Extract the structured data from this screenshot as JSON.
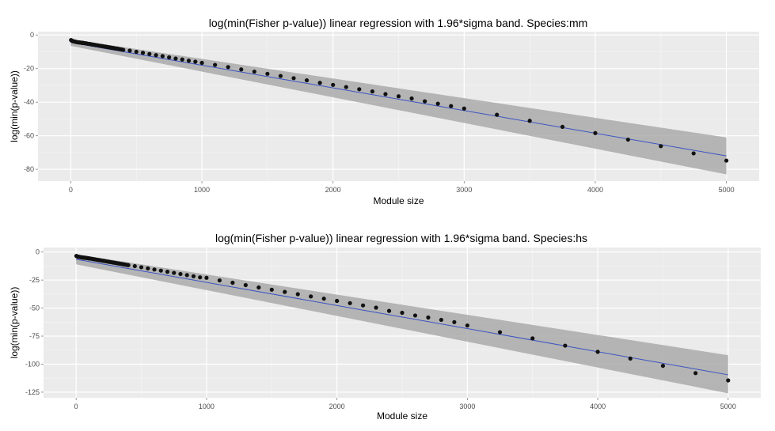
{
  "chart_data": [
    {
      "type": "scatter",
      "title": "log(min(Fisher p-value)) linear regression with 1.96*sigma band. Species:mm",
      "xlabel": "Module size",
      "ylabel": "log(min(p-value))",
      "xlim": [
        -250,
        5250
      ],
      "ylim": [
        -87,
        2
      ],
      "xticks": [
        0,
        1000,
        2000,
        3000,
        4000,
        5000
      ],
      "yticks": [
        0,
        -20,
        -40,
        -60,
        -80
      ],
      "grid": true,
      "background": "#ebebeb",
      "band_color": "#a6a6a6",
      "line_color": "#3b53c4",
      "point_color": "#111111",
      "fit": {
        "x": [
          0,
          5000
        ],
        "y": [
          -4.5,
          -72
        ]
      },
      "band": {
        "x": [
          0,
          5000
        ],
        "upper": [
          -2.5,
          -61
        ],
        "lower": [
          -6.5,
          -83
        ]
      },
      "x": [
        2,
        5,
        10,
        15,
        20,
        25,
        30,
        35,
        40,
        45,
        50,
        55,
        60,
        65,
        70,
        75,
        80,
        85,
        90,
        95,
        100,
        110,
        120,
        130,
        140,
        150,
        160,
        170,
        180,
        190,
        200,
        210,
        220,
        230,
        240,
        250,
        260,
        270,
        280,
        290,
        300,
        310,
        320,
        330,
        340,
        350,
        360,
        370,
        380,
        390,
        400,
        450,
        500,
        550,
        600,
        650,
        700,
        750,
        800,
        850,
        900,
        950,
        1000,
        1100,
        1200,
        1300,
        1400,
        1500,
        1600,
        1700,
        1800,
        1900,
        2000,
        2100,
        2200,
        2300,
        2400,
        2500,
        2600,
        2700,
        2800,
        2900,
        3000,
        3250,
        3500,
        3750,
        4000,
        4250,
        4500,
        4750,
        5000
      ],
      "y": [
        -3.0,
        -3.2,
        -3.4,
        -3.6,
        -3.7,
        -3.8,
        -3.9,
        -4.0,
        -4.1,
        -4.2,
        -4.3,
        -4.3,
        -4.4,
        -4.4,
        -4.5,
        -4.5,
        -4.6,
        -4.6,
        -4.7,
        -4.7,
        -4.8,
        -4.9,
        -5.0,
        -5.2,
        -5.3,
        -5.4,
        -5.6,
        -5.7,
        -5.8,
        -6.0,
        -6.1,
        -6.2,
        -6.4,
        -6.5,
        -6.6,
        -6.8,
        -6.9,
        -7.0,
        -7.2,
        -7.3,
        -7.4,
        -7.6,
        -7.7,
        -7.8,
        -8.0,
        -8.1,
        -8.2,
        -8.4,
        -8.5,
        -8.7,
        -8.8,
        -9.3,
        -10.0,
        -10.6,
        -11.3,
        -12.0,
        -12.6,
        -13.3,
        -14.0,
        -14.6,
        -15.3,
        -15.9,
        -16.6,
        -17.8,
        -19.1,
        -20.5,
        -21.8,
        -23.1,
        -24.4,
        -25.7,
        -27.0,
        -28.5,
        -29.7,
        -31.0,
        -32.3,
        -33.6,
        -35.2,
        -36.5,
        -37.8,
        -39.5,
        -40.9,
        -42.3,
        -43.8,
        -47.5,
        -51.1,
        -54.7,
        -58.4,
        -62.3,
        -66.2,
        -70.5,
        -74.8
      ]
    },
    {
      "type": "scatter",
      "title": "log(min(Fisher p-value)) linear regression with 1.96*sigma band. Species:hs",
      "xlabel": "Module size",
      "ylabel": "log(min(p-value))",
      "xlim": [
        -250,
        5250
      ],
      "ylim": [
        -130,
        4
      ],
      "xticks": [
        0,
        1000,
        2000,
        3000,
        4000,
        5000
      ],
      "yticks": [
        0,
        -25,
        -50,
        -75,
        -100,
        -125
      ],
      "grid": true,
      "background": "#ebebeb",
      "band_color": "#a6a6a6",
      "line_color": "#3b53c4",
      "point_color": "#111111",
      "fit": {
        "x": [
          0,
          5000
        ],
        "y": [
          -6.5,
          -109.5
        ]
      },
      "band": {
        "x": [
          0,
          5000
        ],
        "upper": [
          -2,
          -92
        ],
        "lower": [
          -11,
          -126
        ]
      },
      "x": [
        2,
        5,
        10,
        15,
        20,
        25,
        30,
        35,
        40,
        45,
        50,
        55,
        60,
        65,
        70,
        75,
        80,
        85,
        90,
        95,
        100,
        110,
        120,
        130,
        140,
        150,
        160,
        170,
        180,
        190,
        200,
        210,
        220,
        230,
        240,
        250,
        260,
        270,
        280,
        290,
        300,
        310,
        320,
        330,
        340,
        350,
        360,
        370,
        380,
        390,
        400,
        450,
        500,
        550,
        600,
        650,
        700,
        750,
        800,
        850,
        900,
        950,
        1000,
        1100,
        1200,
        1300,
        1400,
        1500,
        1600,
        1700,
        1800,
        1900,
        2000,
        2100,
        2200,
        2300,
        2400,
        2500,
        2600,
        2700,
        2800,
        2900,
        3000,
        3250,
        3500,
        3750,
        4000,
        4250,
        4500,
        4750,
        5000
      ],
      "y": [
        -3.5,
        -3.8,
        -4.0,
        -4.2,
        -4.3,
        -4.4,
        -4.5,
        -4.6,
        -4.7,
        -4.8,
        -4.9,
        -5.0,
        -5.0,
        -5.1,
        -5.2,
        -5.3,
        -5.3,
        -5.4,
        -5.5,
        -5.6,
        -5.7,
        -5.9,
        -6.1,
        -6.3,
        -6.5,
        -6.7,
        -6.9,
        -7.1,
        -7.3,
        -7.5,
        -7.7,
        -7.9,
        -8.1,
        -8.3,
        -8.5,
        -8.7,
        -8.9,
        -9.1,
        -9.3,
        -9.5,
        -9.7,
        -9.9,
        -10.1,
        -10.3,
        -10.5,
        -10.7,
        -10.9,
        -11.1,
        -11.3,
        -11.5,
        -11.7,
        -12.6,
        -13.6,
        -14.6,
        -15.6,
        -16.6,
        -17.6,
        -18.6,
        -19.6,
        -20.6,
        -21.6,
        -22.6,
        -23.0,
        -25.3,
        -27.4,
        -29.5,
        -31.6,
        -33.6,
        -35.6,
        -37.6,
        -39.6,
        -41.6,
        -43.6,
        -45.6,
        -47.6,
        -49.6,
        -52.5,
        -54.2,
        -56.6,
        -58.4,
        -60.5,
        -62.5,
        -65.5,
        -71.5,
        -77.0,
        -83.5,
        -89.0,
        -95.0,
        -101.5,
        -108.0,
        -114.5
      ]
    }
  ]
}
